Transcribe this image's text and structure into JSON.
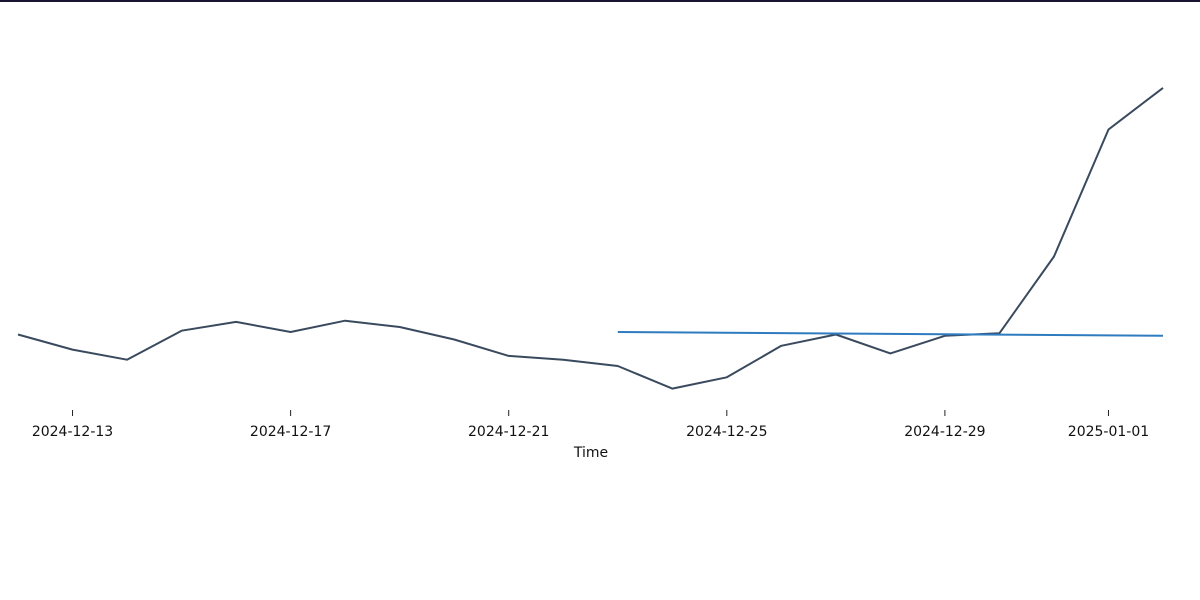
{
  "chart_data": {
    "type": "line",
    "xlabel": "Time",
    "x_ticks": [
      "2024-12-13",
      "2024-12-17",
      "2024-12-21",
      "2024-12-25",
      "2024-12-29",
      "2025-01-01"
    ],
    "series": [
      {
        "color": "#3a4a5e",
        "x": [
          "2024-12-12",
          "2024-12-13",
          "2024-12-14",
          "2024-12-15",
          "2024-12-16",
          "2024-12-17",
          "2024-12-18",
          "2024-12-19",
          "2024-12-20",
          "2024-12-21",
          "2024-12-22",
          "2024-12-23",
          "2024-12-24",
          "2024-12-25",
          "2024-12-26",
          "2024-12-27",
          "2024-12-28",
          "2024-12-29",
          "2024-12-30",
          "2024-12-31",
          "2025-01-01",
          "2025-01-02"
        ],
        "values": [
          0.0,
          -0.6,
          -1.0,
          0.15,
          0.5,
          0.1,
          0.55,
          0.3,
          -0.2,
          -0.85,
          -1.0,
          -1.25,
          -2.15,
          -1.7,
          -0.45,
          0.0,
          -0.75,
          -0.05,
          0.05,
          3.1,
          8.15,
          9.8
        ]
      },
      {
        "color": "#2f7bbf",
        "x": [
          "2024-12-23",
          "2025-01-02"
        ],
        "values": [
          0.1,
          -0.05
        ]
      }
    ],
    "ylim": [
      -3.0,
      12.5
    ],
    "grid": false,
    "legend": false
  }
}
